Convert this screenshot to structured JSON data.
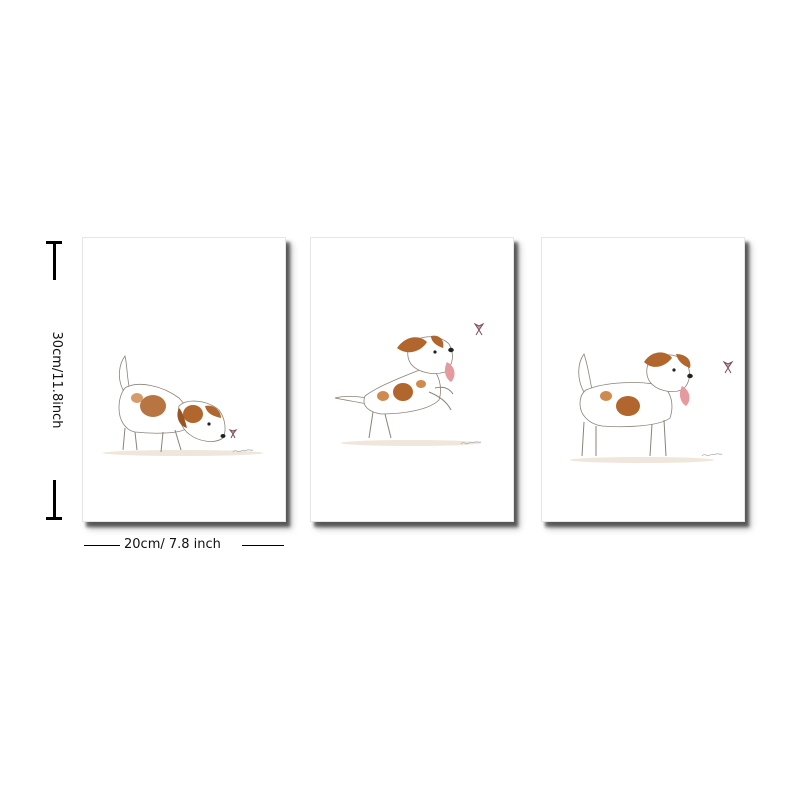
{
  "dimensions": {
    "height_label": "30cm/11.8inch",
    "width_label": "20cm/ 7.8 inch"
  },
  "panels": [
    {
      "subject": "dog-sniffing-butterfly"
    },
    {
      "subject": "dog-leaping-at-butterfly"
    },
    {
      "subject": "dog-standing-with-butterfly"
    }
  ],
  "colors": {
    "dog_spot": "#b0662c",
    "dog_spot_light": "#cf8a4e",
    "outline": "#8a8378",
    "butterfly": "#7a4a5a",
    "shadow": "#333333"
  }
}
